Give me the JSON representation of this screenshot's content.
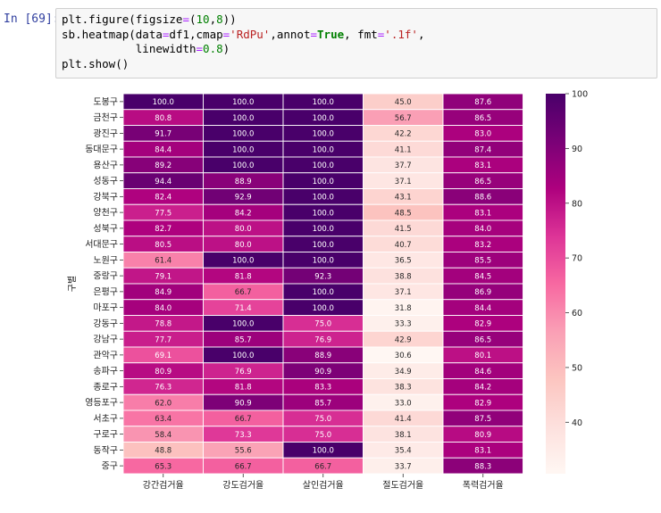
{
  "cell": {
    "prompt": "In [69]:",
    "code": [
      [
        {
          "t": "plt.figure(figsize",
          "c": ""
        },
        {
          "t": "=",
          "c": "op"
        },
        {
          "t": "(",
          "c": ""
        },
        {
          "t": "10",
          "c": "num"
        },
        {
          "t": ",",
          "c": ""
        },
        {
          "t": "8",
          "c": "num"
        },
        {
          "t": "))",
          "c": ""
        }
      ],
      [
        {
          "t": "sb.heatmap(data",
          "c": ""
        },
        {
          "t": "=",
          "c": "op"
        },
        {
          "t": "df1,cmap",
          "c": ""
        },
        {
          "t": "=",
          "c": "op"
        },
        {
          "t": "'RdPu'",
          "c": "str"
        },
        {
          "t": ",annot",
          "c": ""
        },
        {
          "t": "=",
          "c": "op"
        },
        {
          "t": "True",
          "c": "kw"
        },
        {
          "t": ", fmt",
          "c": ""
        },
        {
          "t": "=",
          "c": "op"
        },
        {
          "t": "'.1f'",
          "c": "str"
        },
        {
          "t": ",",
          "c": ""
        }
      ],
      [
        {
          "t": "           linewidth",
          "c": ""
        },
        {
          "t": "=",
          "c": "op"
        },
        {
          "t": "0.8",
          "c": "num"
        },
        {
          "t": ")",
          "c": ""
        }
      ],
      [
        {
          "t": "plt.show()",
          "c": ""
        }
      ]
    ]
  },
  "chart_data": {
    "type": "heatmap",
    "ylabel": "구별",
    "xlabel": "",
    "columns": [
      "강간검거율",
      "강도검거율",
      "살인검거율",
      "절도검거율",
      "폭력검거율"
    ],
    "rows": [
      "도봉구",
      "금천구",
      "광진구",
      "동대문구",
      "용산구",
      "성동구",
      "강북구",
      "양천구",
      "성북구",
      "서대문구",
      "노원구",
      "중랑구",
      "은평구",
      "마포구",
      "강동구",
      "강남구",
      "관악구",
      "송파구",
      "종로구",
      "영등포구",
      "서초구",
      "구로구",
      "동작구",
      "중구"
    ],
    "values": [
      [
        100.0,
        100.0,
        100.0,
        45.0,
        87.6
      ],
      [
        80.8,
        100.0,
        100.0,
        56.7,
        86.5
      ],
      [
        91.7,
        100.0,
        100.0,
        42.2,
        83.0
      ],
      [
        84.4,
        100.0,
        100.0,
        41.1,
        87.4
      ],
      [
        89.2,
        100.0,
        100.0,
        37.7,
        83.1
      ],
      [
        94.4,
        88.9,
        100.0,
        37.1,
        86.5
      ],
      [
        82.4,
        92.9,
        100.0,
        43.1,
        88.6
      ],
      [
        77.5,
        84.2,
        100.0,
        48.5,
        83.1
      ],
      [
        82.7,
        80.0,
        100.0,
        41.5,
        84.0
      ],
      [
        80.5,
        80.0,
        100.0,
        40.7,
        83.2
      ],
      [
        61.4,
        100.0,
        100.0,
        36.5,
        85.5
      ],
      [
        79.1,
        81.8,
        92.3,
        38.8,
        84.5
      ],
      [
        84.9,
        66.7,
        100.0,
        37.1,
        86.9
      ],
      [
        84.0,
        71.4,
        100.0,
        31.8,
        84.4
      ],
      [
        78.8,
        100.0,
        75.0,
        33.3,
        82.9
      ],
      [
        77.7,
        85.7,
        76.9,
        42.9,
        86.5
      ],
      [
        69.1,
        100.0,
        88.9,
        30.6,
        80.1
      ],
      [
        80.9,
        76.9,
        90.9,
        34.9,
        84.6
      ],
      [
        76.3,
        81.8,
        83.3,
        38.3,
        84.2
      ],
      [
        62.0,
        90.9,
        85.7,
        33.0,
        82.9
      ],
      [
        63.4,
        66.7,
        75.0,
        41.4,
        87.5
      ],
      [
        58.4,
        73.3,
        75.0,
        38.1,
        80.9
      ],
      [
        48.8,
        55.6,
        100.0,
        35.4,
        83.1
      ],
      [
        65.3,
        66.7,
        66.7,
        33.7,
        88.3
      ]
    ],
    "annot_format": ".1f",
    "colormap": "RdPu",
    "vmin": 30.6,
    "vmax": 100.0,
    "colorbar_ticks": [
      40,
      50,
      60,
      70,
      80,
      90,
      100
    ],
    "colorbar_tick_labels": [
      "40",
      "50",
      "60",
      "70",
      "80",
      "90",
      "100"
    ],
    "cmap_stops": [
      "#fff7f3",
      "#fde0dd",
      "#fcc5c0",
      "#fa9fb5",
      "#f768a1",
      "#dd3497",
      "#ae017e",
      "#7a0177",
      "#49006a"
    ],
    "grid_line_color": "#ffffff"
  }
}
